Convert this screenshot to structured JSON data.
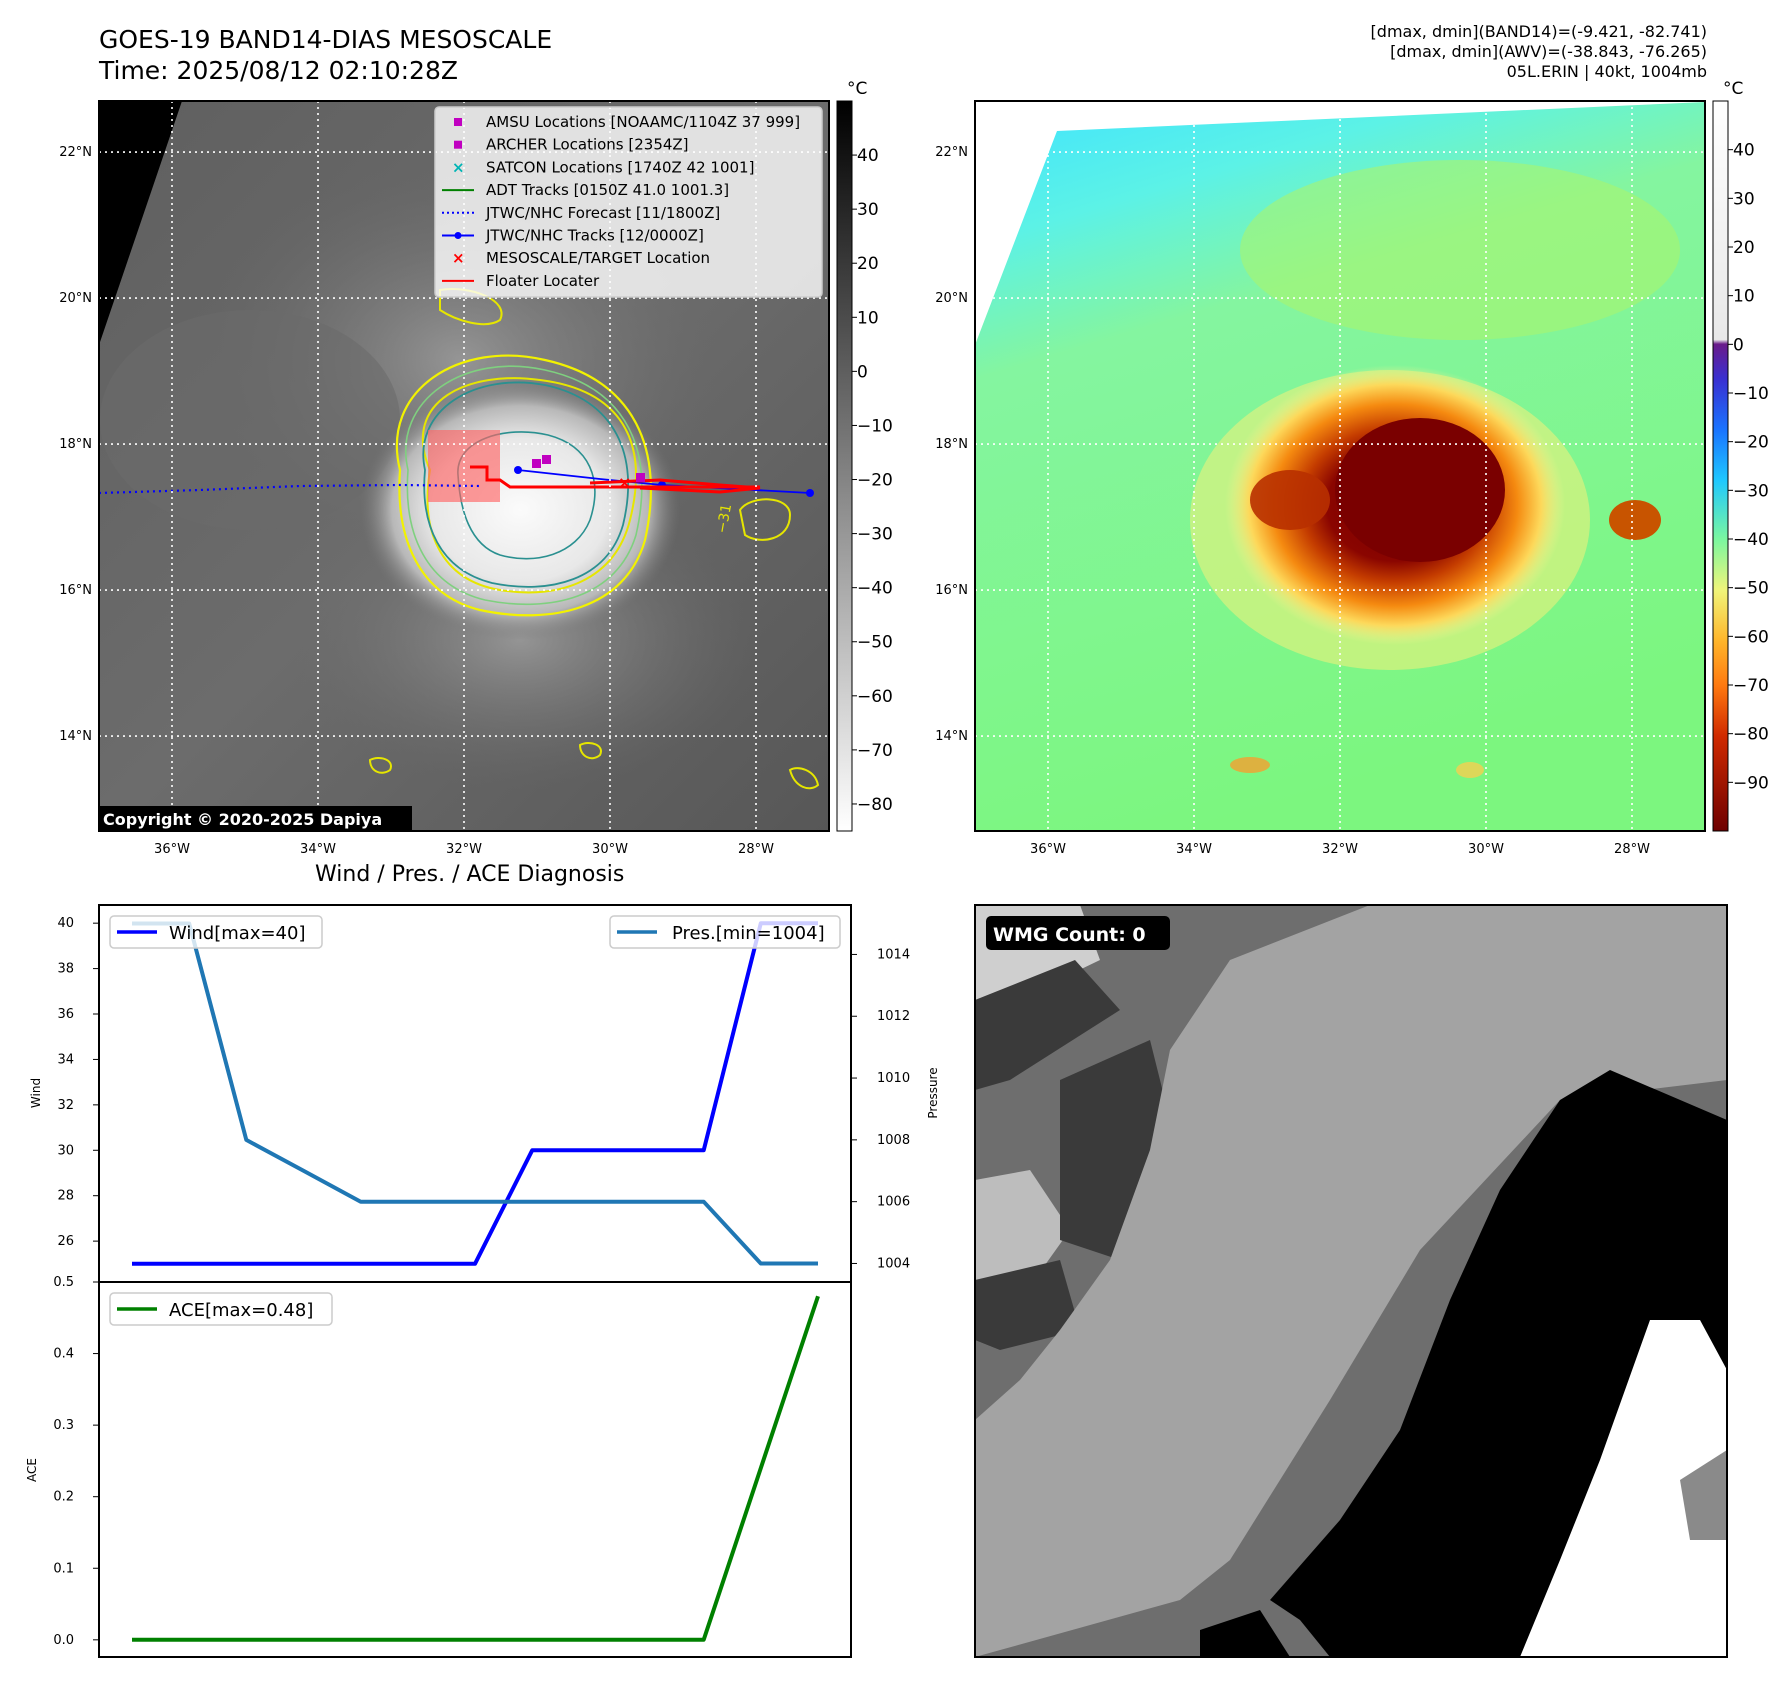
{
  "header": {
    "title_line1": "GOES-19 BAND14-DIAS MESOSCALE",
    "title_line2": "Time: 2025/08/12 02:10:28Z",
    "info_line1": "[dmax, dmin](BAND14)=(-9.421, -82.741)",
    "info_line2": "[dmax, dmin](AWV)=(-38.843, -76.265)",
    "info_line3": "05L.ERIN | 40kt, 1004mb"
  },
  "map_axes": {
    "lat_labels": [
      "22°N",
      "20°N",
      "18°N",
      "16°N",
      "14°N"
    ],
    "lon_labels": [
      "36°W",
      "34°W",
      "32°W",
      "30°W",
      "28°W"
    ],
    "lat_values": [
      22,
      20,
      18,
      16,
      14
    ],
    "lon_values": [
      -36,
      -34,
      -32,
      -30,
      -28
    ],
    "extent": {
      "lon_min": -37.0,
      "lon_max": -27.0,
      "lat_min": 12.7,
      "lat_max": 22.7
    }
  },
  "ir_panel": {
    "colorbar_unit": "°C",
    "colorbar_ticks": [
      "40",
      "30",
      "20",
      "10",
      "0",
      "−10",
      "−20",
      "−30",
      "−40",
      "−50",
      "−60",
      "−70",
      "−80"
    ],
    "colorbar_tick_values": [
      40,
      30,
      20,
      10,
      0,
      -10,
      -20,
      -30,
      -40,
      -50,
      -60,
      -70,
      -80
    ],
    "colorbar_range": [
      -85,
      50
    ],
    "copyright": "Copyright © 2020-2025 Dapiya",
    "contour_label": "−31",
    "legend": [
      {
        "label": "AMSU Locations [NOAAMC/1104Z 37 999]",
        "color": "#c000c0",
        "marker": "square"
      },
      {
        "label": "ARCHER Locations [2354Z]",
        "color": "#c000c0",
        "marker": "square"
      },
      {
        "label": "SATCON Locations [1740Z 42 1001]",
        "color": "#00b5b5",
        "marker": "x"
      },
      {
        "label": "ADT Tracks [0150Z 41.0 1001.3]",
        "color": "#008000",
        "marker": "line"
      },
      {
        "label": "JTWC/NHC Forecast [11/1800Z]",
        "color": "#0000ff",
        "marker": "dotted"
      },
      {
        "label": "JTWC/NHC Tracks [12/0000Z]",
        "color": "#0000ff",
        "marker": "line-dot"
      },
      {
        "label": "MESOSCALE/TARGET Location",
        "color": "#ff0000",
        "marker": "x"
      },
      {
        "label": "Floater Locater",
        "color": "#ff0000",
        "marker": "line"
      }
    ]
  },
  "awv_panel": {
    "colorbar_unit": "°C",
    "colorbar_ticks": [
      "40",
      "30",
      "20",
      "10",
      "0",
      "−10",
      "−20",
      "−30",
      "−40",
      "−50",
      "−60",
      "−70",
      "−80",
      "−90"
    ],
    "colorbar_tick_values": [
      40,
      30,
      20,
      10,
      0,
      -10,
      -20,
      -30,
      -40,
      -50,
      -60,
      -70,
      -80,
      -90
    ],
    "colorbar_range": [
      -100,
      50
    ]
  },
  "diagnosis": {
    "title": "Wind / Pres. / ACE Diagnosis",
    "wind_ylabel": "Wind",
    "pressure_ylabel": "Pressure",
    "ace_ylabel": "ACE",
    "wind_legend": "Wind[max=40]",
    "pres_legend": "Pres.[min=1004]",
    "ace_legend": "ACE[max=0.48]"
  },
  "wmg_panel": {
    "label": "WMG Count: 0"
  },
  "chart_data": [
    {
      "type": "line",
      "name": "wind_pressure",
      "x": [
        0,
        1,
        2,
        3,
        4,
        5,
        6,
        7,
        8,
        9,
        10,
        11,
        12
      ],
      "series": [
        {
          "name": "Wind[max=40]",
          "axis": "left",
          "color": "#0000ff",
          "values": [
            25,
            25,
            25,
            25,
            25,
            25,
            25,
            30,
            30,
            30,
            30,
            40,
            40
          ]
        },
        {
          "name": "Pres.[min=1004]",
          "axis": "right",
          "color": "#1f77b4",
          "values": [
            1015,
            1015,
            1008,
            1007,
            1006,
            1006,
            1006,
            1006,
            1006,
            1006,
            1006,
            1004,
            1004
          ]
        }
      ],
      "ylim_left": [
        24.2,
        40.8
      ],
      "yticks_left": [
        26,
        28,
        30,
        32,
        34,
        36,
        38,
        40
      ],
      "ylim_right": [
        1003.4,
        1015.6
      ],
      "yticks_right": [
        1004,
        1006,
        1008,
        1010,
        1012,
        1014
      ]
    },
    {
      "type": "line",
      "name": "ace",
      "x": [
        0,
        1,
        2,
        3,
        4,
        5,
        6,
        7,
        8,
        9,
        10,
        11,
        12
      ],
      "series": [
        {
          "name": "ACE[max=0.48]",
          "color": "#008000",
          "values": [
            0,
            0,
            0,
            0,
            0,
            0,
            0,
            0,
            0,
            0,
            0,
            0.24,
            0.48
          ]
        }
      ],
      "ylim": [
        -0.024,
        0.5
      ],
      "yticks": [
        0.0,
        0.1,
        0.2,
        0.3,
        0.4,
        0.5
      ],
      "ytick_labels": [
        "0.0",
        "0.1",
        "0.2",
        "0.3",
        "0.4",
        "0.5"
      ]
    }
  ]
}
